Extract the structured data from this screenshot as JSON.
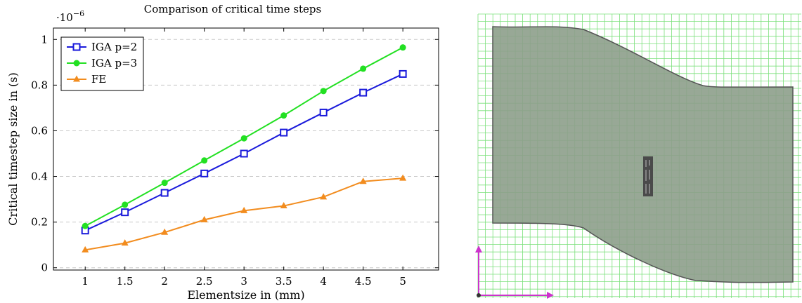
{
  "chart_data": {
    "type": "line",
    "title": "Comparison of critical time steps",
    "xlabel": "Elementsize in (mm)",
    "ylabel": "Critical timestep size in (s)",
    "y_multiplier": "·10",
    "y_multiplier_exp": "−6",
    "x": [
      1,
      1.5,
      2,
      2.5,
      3,
      3.5,
      4,
      4.5,
      5
    ],
    "x_ticks": [
      "1",
      "1.5",
      "2",
      "2.5",
      "3",
      "3.5",
      "4",
      "4.5",
      "5"
    ],
    "y_ticks": [
      0,
      0.2,
      0.4,
      0.6,
      0.8,
      1
    ],
    "y_tick_labels": [
      "0",
      "0.2",
      "0.4",
      "0.6",
      "0.8",
      "1"
    ],
    "xlim": [
      0.6,
      5.45
    ],
    "ylim": [
      -0.01,
      1.05
    ],
    "grid": "horizontal-dashed",
    "legend_position": "top-left",
    "series": [
      {
        "name": "IGA p=2",
        "color": "#1a1adb",
        "marker": "square",
        "values": [
          0.163,
          0.243,
          0.328,
          0.413,
          0.5,
          0.592,
          0.68,
          0.767,
          0.849
        ]
      },
      {
        "name": "IGA p=3",
        "color": "#22e022",
        "marker": "circle",
        "values": [
          0.183,
          0.276,
          0.372,
          0.47,
          0.567,
          0.667,
          0.774,
          0.872,
          0.965
        ]
      },
      {
        "name": "FE",
        "color": "#f28c1e",
        "marker": "triangle",
        "values": [
          0.078,
          0.108,
          0.155,
          0.21,
          0.25,
          0.271,
          0.31,
          0.378,
          0.392
        ]
      }
    ]
  },
  "mesh": {
    "grid_color": "#7be07b",
    "fill_color": "#8d9e8b",
    "outline_color": "#555555",
    "axis_color": "#cc33cc"
  }
}
